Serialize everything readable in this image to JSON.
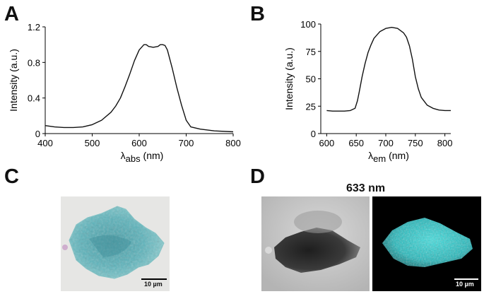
{
  "panels": {
    "a": {
      "letter": "A"
    },
    "b": {
      "letter": "B"
    },
    "c": {
      "letter": "C",
      "scalebar_label": "10 µm"
    },
    "d": {
      "letter": "D",
      "heading": "633 nm",
      "scalebar_label": "10 µm"
    }
  },
  "chart_data": [
    {
      "panel": "A",
      "type": "line",
      "xlabel_main": "λ",
      "xlabel_sub": "abs",
      "xlabel_unit": " (nm)",
      "ylabel": "Intensity (a.u.)",
      "xlim": [
        400,
        800
      ],
      "ylim": [
        0,
        1.2
      ],
      "xticks": [
        400,
        500,
        600,
        700,
        800
      ],
      "yticks": [
        0,
        0.4,
        0.8,
        1.2
      ],
      "ytick_labels": [
        "0",
        "0.4",
        "0.8",
        "1.2"
      ],
      "grid": false,
      "x": [
        400,
        420,
        440,
        460,
        480,
        500,
        520,
        540,
        550,
        560,
        570,
        580,
        590,
        600,
        610,
        615,
        620,
        630,
        640,
        645,
        650,
        655,
        660,
        670,
        680,
        690,
        700,
        710,
        730,
        760,
        800
      ],
      "y": [
        0.09,
        0.075,
        0.068,
        0.068,
        0.075,
        0.1,
        0.15,
        0.24,
        0.31,
        0.4,
        0.53,
        0.67,
        0.82,
        0.94,
        1.0,
        1.0,
        0.98,
        0.97,
        0.98,
        1.0,
        1.0,
        0.99,
        0.94,
        0.74,
        0.52,
        0.32,
        0.15,
        0.075,
        0.05,
        0.03,
        0.02
      ]
    },
    {
      "panel": "B",
      "type": "line",
      "xlabel_main": "λ",
      "xlabel_sub": "em",
      "xlabel_unit": " (nm)",
      "ylabel": "Intensity (a.u.)",
      "xlim": [
        590,
        810
      ],
      "ylim": [
        0,
        100
      ],
      "xticks": [
        600,
        650,
        700,
        750,
        800
      ],
      "yticks": [
        0,
        25,
        50,
        75,
        100
      ],
      "ytick_labels": [
        "0",
        "25",
        "50",
        "75",
        "100"
      ],
      "grid": false,
      "x": [
        600,
        610,
        620,
        630,
        640,
        648,
        652,
        655,
        660,
        665,
        670,
        675,
        680,
        690,
        700,
        710,
        720,
        730,
        735,
        740,
        745,
        750,
        755,
        760,
        770,
        780,
        790,
        800,
        810
      ],
      "y": [
        21,
        20.5,
        20.5,
        20.5,
        21,
        23,
        30,
        38,
        52,
        64,
        74,
        81,
        87,
        93,
        96,
        97,
        96,
        92,
        88,
        80,
        68,
        52,
        41,
        33,
        26,
        23,
        21.5,
        21,
        21
      ]
    }
  ]
}
